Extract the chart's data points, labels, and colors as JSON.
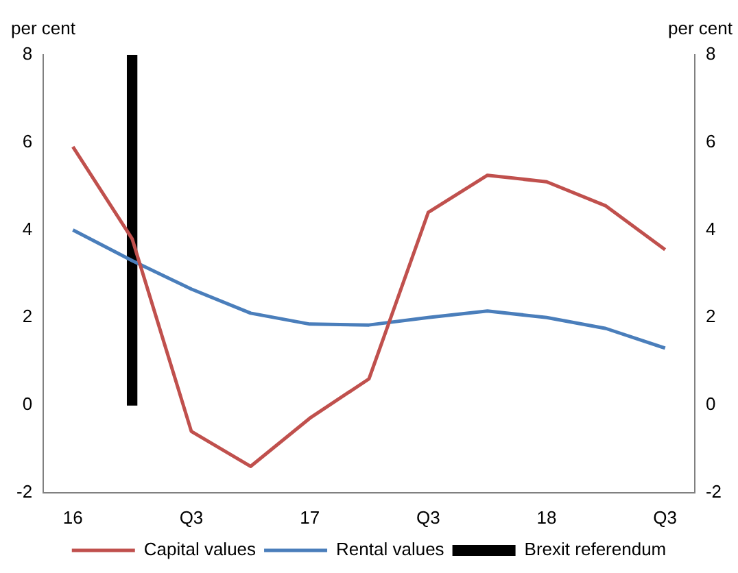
{
  "chart_data": {
    "type": "line",
    "ylabel": "per cent",
    "y2label": "per cent",
    "categories": [
      "16",
      null,
      "Q3",
      null,
      "17",
      null,
      "Q3",
      null,
      "18",
      null,
      "Q3"
    ],
    "series": [
      {
        "name": "Brexit referendum",
        "type": "bar",
        "color": "#000000",
        "values": [
          null,
          8,
          null,
          null,
          null,
          null,
          null,
          null,
          null,
          null,
          null
        ]
      },
      {
        "name": "Capital values",
        "color": "#c0504d",
        "values": [
          5.9,
          3.8,
          -0.6,
          -1.4,
          -0.3,
          0.6,
          4.4,
          5.25,
          5.1,
          4.55,
          3.55
        ]
      },
      {
        "name": "Rental values",
        "color": "#4a7ebb",
        "values": [
          4.0,
          3.3,
          2.65,
          2.1,
          1.85,
          1.83,
          2.0,
          2.15,
          2.0,
          1.75,
          1.3
        ]
      }
    ],
    "ylim": [
      -2,
      8
    ],
    "yticks": [
      -2,
      0,
      2,
      4,
      6,
      8
    ],
    "y2lim": [
      -2,
      8
    ],
    "y2ticks": [
      -2,
      0,
      2,
      4,
      6,
      8
    ],
    "legend": "bottom",
    "grid": false,
    "marker": "none",
    "line_style": "solid"
  }
}
